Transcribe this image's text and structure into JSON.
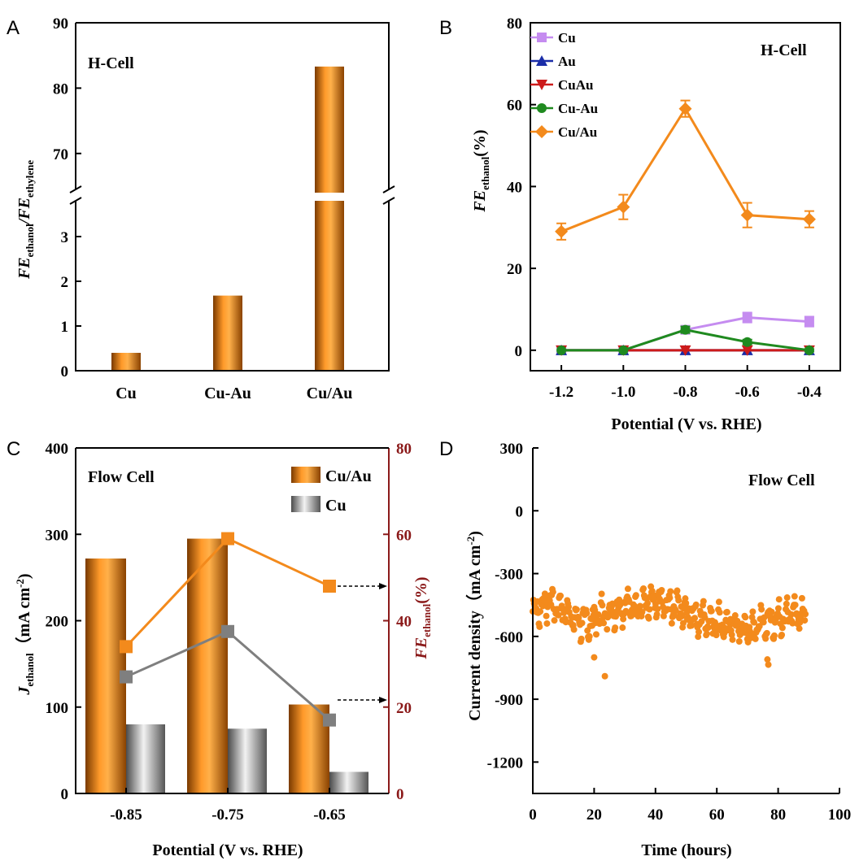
{
  "chart_data": [
    {
      "panel": "A",
      "type": "bar",
      "annotation": "H-Cell",
      "categories": [
        "Cu",
        "Cu-Au",
        "Cu/Au"
      ],
      "values": [
        0.4,
        1.68,
        83.3
      ],
      "ylabel_main": "FE",
      "ylabel_sub1": "ethanol",
      "ylabel_mid": "/FE",
      "ylabel_sub2": "ethylene",
      "axis_break": {
        "lower": [
          0,
          3.8
        ],
        "upper": [
          64.5,
          90
        ]
      },
      "yticks_lower": [
        "0",
        "1",
        "2",
        "3"
      ],
      "yticks_upper": [
        "70",
        "80",
        "90"
      ],
      "bar_color": "#f07c00"
    },
    {
      "panel": "B",
      "type": "line",
      "annotation": "H-Cell",
      "xlabel": "Potential (V vs. RHE)",
      "ylabel_main": "FE",
      "ylabel_sub": "ethanol",
      "ylabel_unit": "(%)",
      "xlim": [
        -1.3,
        -0.3
      ],
      "ylim": [
        -5,
        80
      ],
      "x": [
        -1.2,
        -1.0,
        -0.8,
        -0.6,
        -0.4
      ],
      "xtick_labels": [
        "-1.2",
        "-1.0",
        "-0.8",
        "-0.6",
        "-0.4"
      ],
      "ytick_labels": [
        "0",
        "20",
        "40",
        "60",
        "80"
      ],
      "series": [
        {
          "name": "Cu",
          "color": "#c58cf0",
          "marker": "square",
          "values": [
            0,
            0,
            5,
            8,
            7
          ],
          "errors": [
            0,
            0,
            0.8,
            1.2,
            1.2
          ]
        },
        {
          "name": "Au",
          "color": "#1a2da8",
          "marker": "triangle-up",
          "values": [
            0,
            0,
            0,
            0,
            0
          ],
          "errors": [
            0,
            0,
            0,
            0,
            0
          ]
        },
        {
          "name": "CuAu",
          "color": "#cc1b1b",
          "marker": "triangle-down",
          "values": [
            0,
            0,
            0,
            0,
            0
          ],
          "errors": [
            0,
            0,
            0,
            0,
            0
          ]
        },
        {
          "name": "Cu-Au",
          "color": "#1f8a1f",
          "marker": "circle",
          "values": [
            0,
            0,
            5,
            2,
            0
          ],
          "errors": [
            0,
            0,
            0.8,
            0.6,
            0.3
          ]
        },
        {
          "name": "Cu/Au",
          "color": "#f38a1c",
          "marker": "diamond",
          "values": [
            29,
            35,
            59,
            33,
            32
          ],
          "errors": [
            2,
            3,
            2,
            3,
            2
          ]
        }
      ]
    },
    {
      "panel": "C",
      "type": "bar+line",
      "annotation": "Flow Cell",
      "xlabel": "Potential (V vs. RHE)",
      "ylabel_left_main": "J",
      "ylabel_left_sub": "ethanol",
      "ylabel_left_unit": "（mA cm",
      "ylabel_left_exp": "-2",
      "ylabel_left_close": ")",
      "ylabel_right_main": "FE",
      "ylabel_right_sub": "ethanol",
      "ylabel_right_unit": "(%)",
      "categories": [
        "-0.85",
        "-0.75",
        "-0.65"
      ],
      "ylim_left": [
        0,
        400
      ],
      "ylim_right": [
        0,
        80
      ],
      "ytick_labels_left": [
        "0",
        "100",
        "200",
        "300",
        "400"
      ],
      "ytick_labels_right": [
        "0",
        "20",
        "40",
        "60",
        "80"
      ],
      "bar_series": [
        {
          "name": "Cu/Au",
          "color": "#f07c00",
          "values": [
            272,
            295,
            103
          ]
        },
        {
          "name": "Cu",
          "color": "#9a9a9a",
          "values": [
            80,
            75,
            25
          ]
        }
      ],
      "line_series": [
        {
          "name": "Cu/Au FE",
          "color": "#f38a1c",
          "values": [
            34,
            59,
            48
          ]
        },
        {
          "name": "Cu FE",
          "color": "#7f7f7f",
          "values": [
            27,
            37.5,
            17
          ]
        }
      ],
      "right_axis_color": "#8b1a1a"
    },
    {
      "panel": "D",
      "type": "scatter",
      "annotation": "Flow Cell",
      "xlabel": "Time (hours)",
      "ylabel_main": "Current density（mA cm",
      "ylabel_exp": "-2",
      "ylabel_close": ")",
      "xlim": [
        0,
        100
      ],
      "ylim": [
        -1350,
        300
      ],
      "xtick_labels": [
        "0",
        "20",
        "40",
        "60",
        "80",
        "100"
      ],
      "ytick_labels": [
        "300",
        "0",
        "-300",
        "-600",
        "-900",
        "-1200"
      ],
      "color": "#f38a1c",
      "time_end": 89,
      "trend": [
        [
          0,
          -480
        ],
        [
          2,
          -470
        ],
        [
          5,
          -430
        ],
        [
          8,
          -460
        ],
        [
          10,
          -470
        ],
        [
          14,
          -520
        ],
        [
          18,
          -540
        ],
        [
          22,
          -500
        ],
        [
          26,
          -480
        ],
        [
          30,
          -450
        ],
        [
          35,
          -460
        ],
        [
          40,
          -440
        ],
        [
          45,
          -450
        ],
        [
          50,
          -480
        ],
        [
          55,
          -520
        ],
        [
          60,
          -540
        ],
        [
          65,
          -550
        ],
        [
          70,
          -560
        ],
        [
          75,
          -540
        ],
        [
          80,
          -510
        ],
        [
          85,
          -490
        ],
        [
          89,
          -500
        ]
      ],
      "outliers": [
        [
          20,
          -700
        ],
        [
          23.5,
          -790
        ],
        [
          76.5,
          -710
        ],
        [
          76.8,
          -735
        ]
      ]
    }
  ],
  "panel_labels": [
    "A",
    "B",
    "C",
    "D"
  ]
}
